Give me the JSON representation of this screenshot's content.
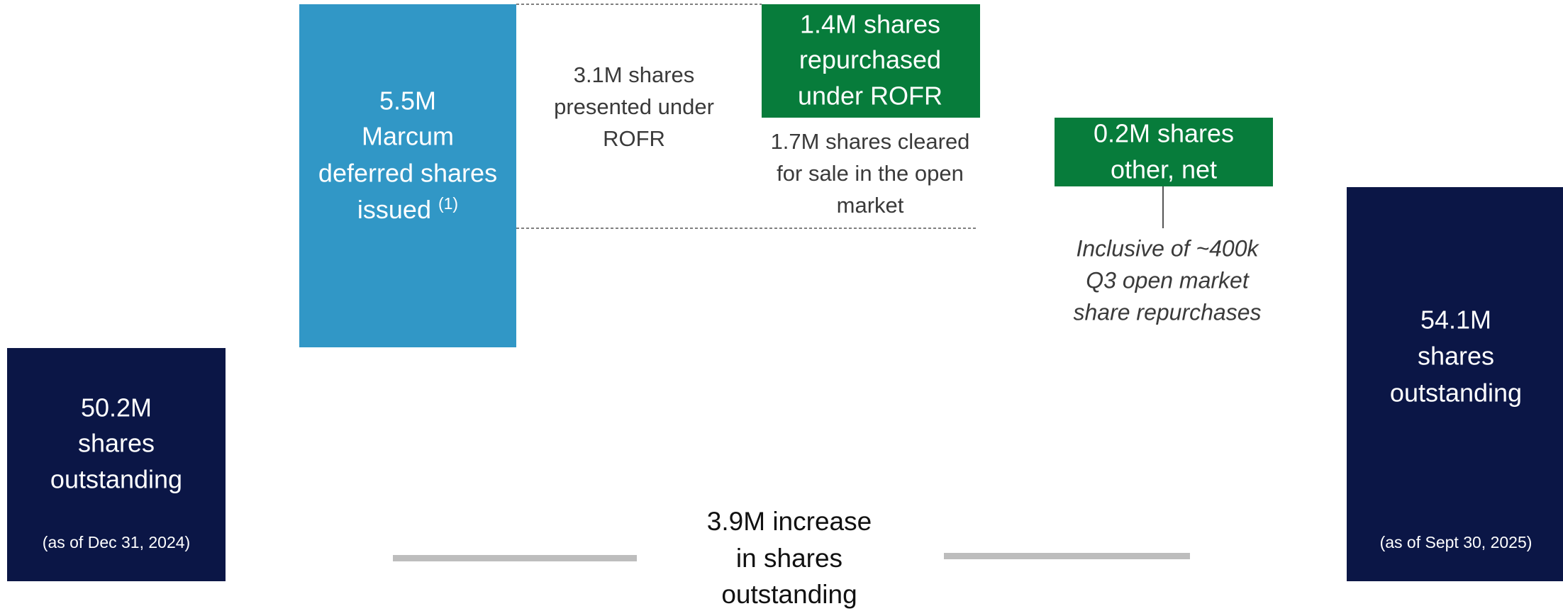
{
  "start": {
    "lines": [
      "50.2M",
      "shares",
      "outstanding"
    ],
    "date": "(as of Dec 31, 2024)"
  },
  "issued": {
    "lines": [
      "5.5M",
      "Marcum",
      "deferred shares",
      "issued"
    ],
    "footnote": "(1)"
  },
  "presented": {
    "lines": [
      "3.1M shares",
      "presented under",
      "ROFR"
    ]
  },
  "repurchased": {
    "lines": [
      "1.4M shares",
      "repurchased",
      "under ROFR"
    ]
  },
  "cleared": {
    "lines": [
      "1.7M shares cleared",
      "for sale in the open",
      "market"
    ]
  },
  "other": {
    "lines": [
      "0.2M shares",
      "other, net"
    ]
  },
  "note": {
    "lines": [
      "Inclusive of ~400k",
      "Q3 open market",
      "share repurchases"
    ]
  },
  "end": {
    "lines": [
      "54.1M",
      "shares",
      "outstanding"
    ],
    "date": "(as of Sept 30, 2025)"
  },
  "change": {
    "lines": [
      "3.9M increase",
      "in shares",
      "outstanding"
    ]
  }
}
